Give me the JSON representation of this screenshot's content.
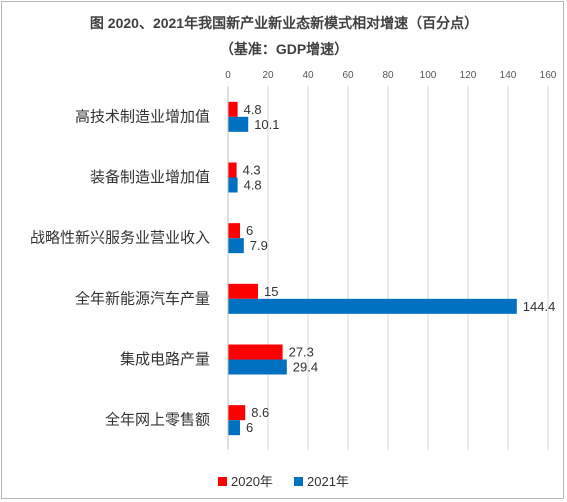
{
  "chart_data": {
    "type": "bar",
    "orientation": "horizontal",
    "title": "图 2020、2021年我国新产业新业态新模式相对增速（百分点）",
    "subtitle": "（基准：GDP增速）",
    "categories": [
      "高技术制造业增加值",
      "装备制造业增加值",
      "战略性新兴服务业营业收入",
      "全年新能源汽车产量",
      "集成电路产量",
      "全年网上零售额"
    ],
    "series": [
      {
        "name": "2020年",
        "color": "#ff0000",
        "values": [
          4.8,
          4.3,
          6,
          15,
          27.3,
          8.6
        ],
        "labels": [
          "4.8",
          "4.3",
          "6",
          "15",
          "27.3",
          "8.6"
        ]
      },
      {
        "name": "2021年",
        "color": "#0070c0",
        "values": [
          10.1,
          4.8,
          7.9,
          144.4,
          29.4,
          6
        ],
        "labels": [
          "10.1",
          "4.8",
          "7.9",
          "144.4",
          "29.4",
          "6"
        ]
      }
    ],
    "x_ticks": [
      "0",
      "20",
      "40",
      "60",
      "80",
      "100",
      "120",
      "140",
      "160"
    ],
    "xlim": [
      0,
      160
    ],
    "grid": true,
    "legend_position": "bottom"
  }
}
